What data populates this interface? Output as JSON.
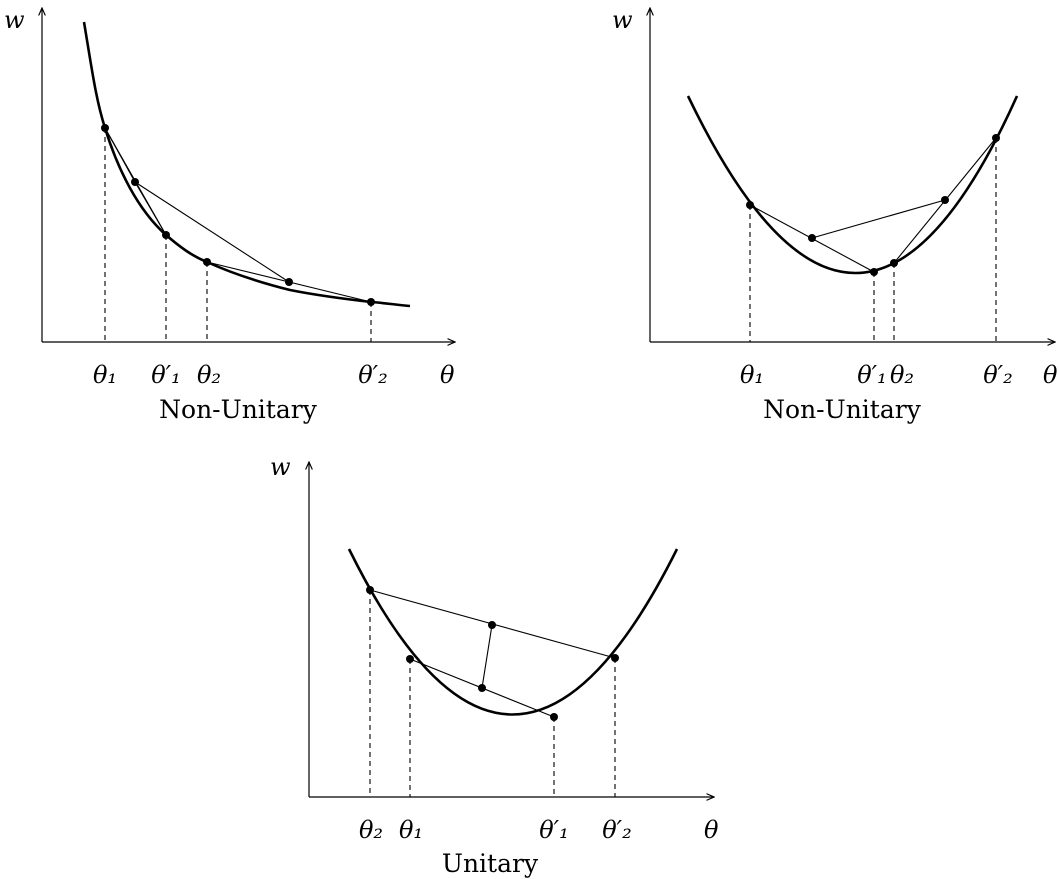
{
  "panels": [
    {
      "id": "top-left",
      "caption": "Non-Unitary",
      "y_axis_label": "w",
      "x_axis_label": "θ",
      "tick_labels": [
        "θ₁",
        "θ′₁",
        "θ₂",
        "θ′₂"
      ]
    },
    {
      "id": "top-right",
      "caption": "Non-Unitary",
      "y_axis_label": "w",
      "x_axis_label": "θ",
      "tick_labels": [
        "θ₁",
        "θ′₁",
        "θ₂",
        "θ′₂"
      ]
    },
    {
      "id": "bottom",
      "caption": "Unitary",
      "y_axis_label": "w",
      "x_axis_label": "θ",
      "tick_labels": [
        "θ₂",
        "θ₁",
        "θ′₁",
        "θ′₂"
      ]
    }
  ]
}
